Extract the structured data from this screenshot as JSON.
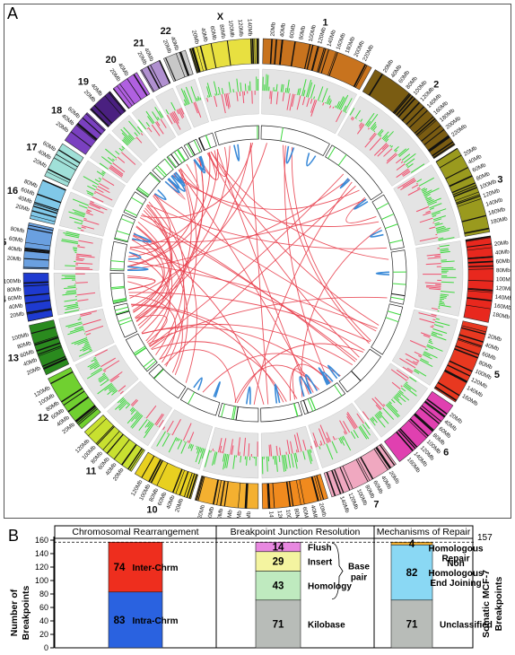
{
  "panel_a": {
    "label": "A",
    "chromosomes": [
      {
        "name": "1",
        "color": "#c8731e",
        "ticks": [
          "20Mb",
          "40Mb",
          "60Mb",
          "80Mb",
          "100Mb",
          "120Mb",
          "140Mb",
          "160Mb",
          "180Mb",
          "200Mb",
          "220Mb"
        ]
      },
      {
        "name": "2",
        "color": "#7a5c12",
        "ticks": [
          "20Mb",
          "40Mb",
          "60Mb",
          "80Mb",
          "100Mb",
          "120Mb",
          "140Mb",
          "160Mb",
          "180Mb",
          "200Mb",
          "220Mb"
        ]
      },
      {
        "name": "3",
        "color": "#9a9a1e",
        "ticks": [
          "20Mb",
          "40Mb",
          "60Mb",
          "80Mb",
          "100Mb",
          "120Mb",
          "140Mb",
          "160Mb",
          "180Mb"
        ]
      },
      {
        "name": "4",
        "color": "#e8281e",
        "ticks": [
          "20Mb",
          "40Mb",
          "60Mb",
          "80Mb",
          "100Mb",
          "120Mb",
          "140Mb",
          "160Mb",
          "180Mb"
        ]
      },
      {
        "name": "5",
        "color": "#e83820",
        "ticks": [
          "20Mb",
          "40Mb",
          "60Mb",
          "80Mb",
          "100Mb",
          "120Mb",
          "140Mb",
          "160Mb"
        ]
      },
      {
        "name": "6",
        "color": "#e040b0",
        "ticks": [
          "20Mb",
          "40Mb",
          "60Mb",
          "80Mb",
          "100Mb",
          "120Mb",
          "140Mb",
          "160Mb"
        ]
      },
      {
        "name": "7",
        "color": "#f0a8c0",
        "ticks": [
          "20Mb",
          "40Mb",
          "60Mb",
          "80Mb",
          "100Mb",
          "120Mb",
          "140Mb"
        ]
      },
      {
        "name": "8",
        "color": "#f08a1e",
        "ticks": [
          "20Mb",
          "40Mb",
          "60Mb",
          "80Mb",
          "100Mb",
          "120Mb",
          "140Mb"
        ]
      },
      {
        "name": "9",
        "color": "#f4b030",
        "ticks": [
          "20Mb",
          "40Mb",
          "60Mb",
          "80Mb",
          "100Mb",
          "120Mb"
        ]
      },
      {
        "name": "10",
        "color": "#e8d020",
        "ticks": [
          "20Mb",
          "40Mb",
          "60Mb",
          "80Mb",
          "100Mb",
          "120Mb"
        ]
      },
      {
        "name": "11",
        "color": "#c8e030",
        "ticks": [
          "20Mb",
          "40Mb",
          "60Mb",
          "80Mb",
          "100Mb",
          "120Mb"
        ]
      },
      {
        "name": "12",
        "color": "#70d030",
        "ticks": [
          "20Mb",
          "40Mb",
          "60Mb",
          "80Mb",
          "100Mb",
          "120Mb"
        ]
      },
      {
        "name": "13",
        "color": "#2a8a1e",
        "ticks": [
          "20Mb",
          "40Mb",
          "60Mb",
          "80Mb",
          "100Mb"
        ]
      },
      {
        "name": "14",
        "color": "#1e3ad0",
        "ticks": [
          "20Mb",
          "40Mb",
          "60Mb",
          "80Mb",
          "100Mb"
        ]
      },
      {
        "name": "15",
        "color": "#6aa0e0",
        "ticks": [
          "20Mb",
          "40Mb",
          "60Mb",
          "80Mb"
        ]
      },
      {
        "name": "16",
        "color": "#80c8e8",
        "ticks": [
          "20Mb",
          "40Mb",
          "60Mb",
          "80Mb"
        ]
      },
      {
        "name": "17",
        "color": "#a0e0d8",
        "ticks": [
          "20Mb",
          "40Mb",
          "60Mb"
        ]
      },
      {
        "name": "18",
        "color": "#7a40c0",
        "ticks": [
          "20Mb",
          "40Mb",
          "60Mb"
        ]
      },
      {
        "name": "19",
        "color": "#4a2080",
        "ticks": [
          "20Mb",
          "40Mb"
        ]
      },
      {
        "name": "20",
        "color": "#b060e0",
        "ticks": [
          "20Mb",
          "40Mb"
        ]
      },
      {
        "name": "21",
        "color": "#b090d0",
        "ticks": [
          "20Mb",
          "40Mb"
        ]
      },
      {
        "name": "22",
        "color": "#c8c8c8",
        "ticks": [
          "20Mb",
          "40Mb"
        ]
      },
      {
        "name": "X",
        "color": "#e8e040",
        "ticks": [
          "20Mb",
          "40Mb",
          "60Mb",
          "80Mb",
          "100Mb",
          "120Mb",
          "140Mb"
        ]
      }
    ],
    "colors": {
      "gain": "#3ed83e",
      "loss": "#f0506e",
      "track_bg": "#e4e4e4",
      "intra_links": "#3a8ad8",
      "inter_links": "#e8404e",
      "inner_ring_mark": "#3ed83e"
    }
  },
  "panel_b": {
    "label": "B",
    "y_axis_label_line1": "Number of",
    "y_axis_label_line2": "Breakpoints",
    "yticks": [
      "0",
      "20",
      "40",
      "60",
      "80",
      "100",
      "120",
      "140",
      "160"
    ],
    "total_value": "157",
    "right_label_line1": "Somatic MCF-7",
    "right_label_line2": "Breakpoints",
    "sections": [
      {
        "title": "Chromosomal Rearrangement",
        "segments": [
          {
            "value": "83",
            "label": "Intra-Chrm",
            "color": "#2a62e0"
          },
          {
            "value": "74",
            "label": "Inter-Chrm",
            "color": "#ee2e1e"
          }
        ]
      },
      {
        "title": "Breakpoint Junction Resolution",
        "segments": [
          {
            "value": "71",
            "label": "Kilobase",
            "color": "#b8bcb8"
          },
          {
            "value": "43",
            "label": "Homology",
            "color": "#bfeabf"
          },
          {
            "value": "29",
            "label": "Insert",
            "color": "#f4f4a0"
          },
          {
            "value": "14",
            "label": "Flush",
            "color": "#e888e0"
          }
        ],
        "bracket_label_line1": "Base",
        "bracket_label_line2": "pair"
      },
      {
        "title": "Mechanisms of Repair",
        "segments": [
          {
            "value": "71",
            "label": "Unclassified",
            "color": "#b8bcb8"
          },
          {
            "value": "82",
            "label_lines": [
              "Non",
              "Homologous",
              "End Joining"
            ],
            "color": "#8ad8f4"
          },
          {
            "value": "4",
            "label_lines": [
              "Homologous",
              "Repair"
            ],
            "color": "#f4b030"
          }
        ]
      }
    ]
  },
  "chart_data": {
    "type": "bar",
    "title": "",
    "ylabel": "Number of Breakpoints",
    "ylim": [
      0,
      160
    ],
    "categories": [
      "Chromosomal Rearrangement",
      "Breakpoint Junction Resolution",
      "Mechanisms of Repair"
    ],
    "series": [
      {
        "name": "Intra-Chrm",
        "values": [
          83,
          null,
          null
        ]
      },
      {
        "name": "Inter-Chrm",
        "values": [
          74,
          null,
          null
        ]
      },
      {
        "name": "Kilobase",
        "values": [
          null,
          71,
          null
        ]
      },
      {
        "name": "Homology",
        "values": [
          null,
          43,
          null
        ]
      },
      {
        "name": "Insert",
        "values": [
          null,
          29,
          null
        ]
      },
      {
        "name": "Flush",
        "values": [
          null,
          14,
          null
        ]
      },
      {
        "name": "Unclassified",
        "values": [
          null,
          null,
          71
        ]
      },
      {
        "name": "Non Homologous End Joining",
        "values": [
          null,
          null,
          82
        ]
      },
      {
        "name": "Homologous Repair",
        "values": [
          null,
          null,
          4
        ]
      }
    ],
    "total": 157
  }
}
